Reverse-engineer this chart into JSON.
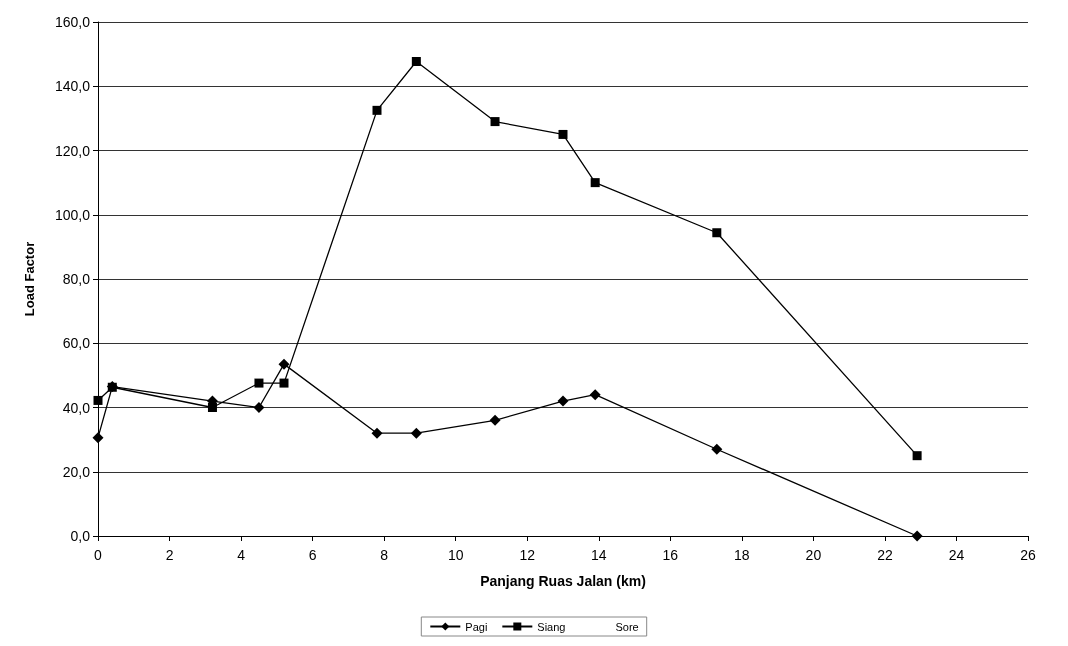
{
  "chart_data": {
    "type": "line",
    "xlabel": "Panjang Ruas Jalan (km)",
    "ylabel": "Load Factor",
    "x": [
      0,
      0.4,
      3.2,
      4.5,
      5.2,
      7.8,
      8.9,
      11.1,
      13.0,
      13.9,
      17.3,
      22.9
    ],
    "series": [
      {
        "name": "Pagi",
        "color": "#000000",
        "marker": "diamond",
        "values": [
          30.6,
          46.5,
          42,
          40,
          53.5,
          32,
          32,
          36,
          42,
          44,
          27,
          0
        ]
      },
      {
        "name": "Siang",
        "color": "#000000",
        "marker": "square",
        "values": [
          42.2,
          46.3,
          40,
          47.6,
          47.6,
          132.5,
          147.7,
          129,
          125,
          110,
          94.4,
          25
        ]
      },
      {
        "name": "Sore",
        "marker": "none",
        "values": [
          null,
          null,
          null,
          null,
          null,
          null,
          null,
          null,
          null,
          null,
          null,
          null
        ]
      }
    ],
    "xlim": [
      0,
      26
    ],
    "xticks": [
      0,
      2,
      4,
      6,
      8,
      10,
      12,
      14,
      16,
      18,
      20,
      22,
      24,
      26
    ],
    "ylim": [
      0,
      160
    ],
    "yticks": [
      {
        "value": 0,
        "label": "0,0"
      },
      {
        "value": 20,
        "label": "20,0"
      },
      {
        "value": 40,
        "label": "40,0"
      },
      {
        "value": 60,
        "label": "60,0"
      },
      {
        "value": 80,
        "label": "80,0"
      },
      {
        "value": 100,
        "label": "100,0"
      },
      {
        "value": 120,
        "label": "120,0"
      },
      {
        "value": 140,
        "label": "140,0"
      },
      {
        "value": 160,
        "label": "160,0"
      }
    ],
    "grid": "y",
    "legend": "bottom",
    "line_style": "solid"
  }
}
